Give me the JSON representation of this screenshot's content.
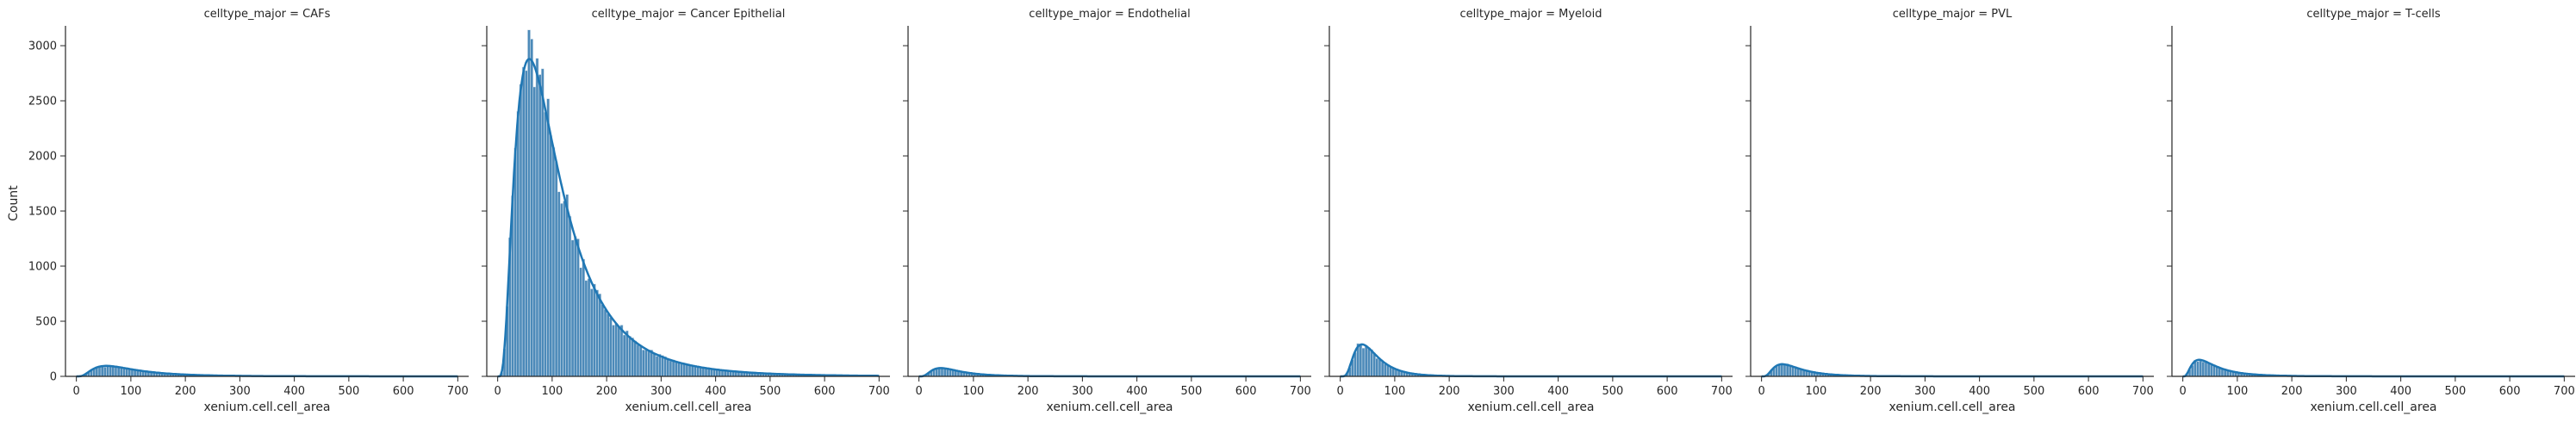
{
  "figure": {
    "ylabel": "Count",
    "xlabel": "xenium.cell.cell_area"
  },
  "style": {
    "bar_fill": "#4c8ab9",
    "bar_edge": "#d8e4ee",
    "kde_line": "#1f77b4",
    "axis_color": "#262626"
  },
  "chart_data": {
    "type": "histogram",
    "layout": "facet-grid 1x6 (shared axes)",
    "xlim": [
      -20,
      720
    ],
    "ylim": [
      0,
      3180
    ],
    "x_ticks": [
      0,
      100,
      200,
      300,
      400,
      500,
      600,
      700
    ],
    "y_ticks": [
      0,
      500,
      1000,
      1500,
      2000,
      2500,
      3000
    ],
    "kde": true,
    "panels": [
      {
        "title": "celltype_major = CAFs",
        "peak_x": 55,
        "peak_count": 95,
        "spread": 38,
        "skew": 1.6
      },
      {
        "title": "celltype_major = Cancer Epithelial",
        "peak_x": 58,
        "peak_count": 2880,
        "spread": 28,
        "skew": 1.55
      },
      {
        "title": "celltype_major = Endothelial",
        "peak_x": 40,
        "peak_count": 75,
        "spread": 22,
        "skew": 1.9
      },
      {
        "title": "celltype_major = Myeloid",
        "peak_x": 40,
        "peak_count": 290,
        "spread": 20,
        "skew": 2.6
      },
      {
        "title": "celltype_major = PVL",
        "peak_x": 38,
        "peak_count": 110,
        "spread": 22,
        "skew": 1.9
      },
      {
        "title": "celltype_major = T-cells",
        "peak_x": 30,
        "peak_count": 150,
        "spread": 15,
        "skew": 1.5
      }
    ]
  }
}
